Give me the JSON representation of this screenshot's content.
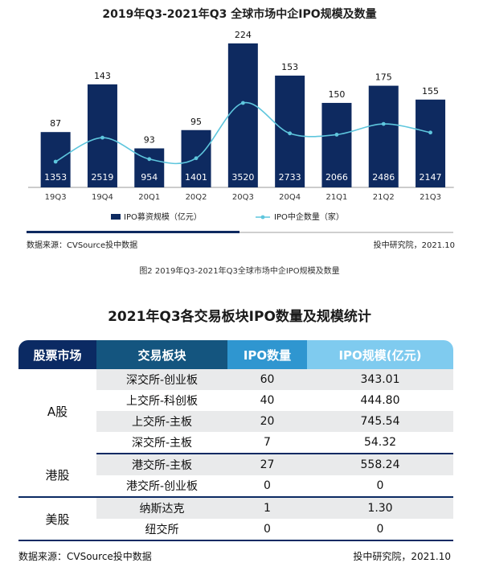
{
  "chart": {
    "title": "2019年Q3-2021年Q3 全球市场中企IPO规模及数量",
    "source": "数据来源：CVSource投中数据",
    "credit": "投中研究院，2021.10",
    "caption": "图2 2019年Q3-2021年Q3全球市场中企IPO规模及数量"
  },
  "colors": {
    "bar": "#0e2a60",
    "line": "#5ec6dd",
    "accent": "#2f96d0",
    "divider": "#0e2a60",
    "divider_light": "#cfcfcf"
  },
  "chart_data": {
    "type": "bar",
    "categories": [
      "19Q3",
      "19Q4",
      "20Q1",
      "20Q2",
      "20Q3",
      "20Q4",
      "21Q1",
      "21Q2",
      "21Q3"
    ],
    "series": [
      {
        "name": "IPO募资规模（亿元）",
        "type": "bar",
        "values": [
          1353,
          2519,
          954,
          1401,
          3520,
          2733,
          2066,
          2486,
          2147
        ]
      },
      {
        "name": "IPO中企数量（家）",
        "type": "line",
        "values": [
          87,
          143,
          93,
          95,
          224,
          153,
          150,
          175,
          155
        ]
      }
    ],
    "title": "2019年Q3-2021年Q3 全球市场中企IPO规模及数量",
    "legend": "bottom"
  },
  "table": {
    "title": "2021年Q3各交易板块IPO数量及规模统计",
    "headers": [
      "股票市场",
      "交易板块",
      "IPO数量",
      "IPO规模(亿元)"
    ],
    "groups": [
      {
        "market": "A股",
        "rows": [
          {
            "board": "深交所-创业板",
            "count": "60",
            "scale": "343.01"
          },
          {
            "board": "上交所-科创板",
            "count": "40",
            "scale": "444.80"
          },
          {
            "board": "上交所-主板",
            "count": "20",
            "scale": "745.54"
          },
          {
            "board": "深交所-主板",
            "count": "7",
            "scale": "54.32"
          }
        ]
      },
      {
        "market": "港股",
        "rows": [
          {
            "board": "港交所-主板",
            "count": "27",
            "scale": "558.24"
          },
          {
            "board": "港交所-创业板",
            "count": "0",
            "scale": "0"
          }
        ]
      },
      {
        "market": "美股",
        "rows": [
          {
            "board": "纳斯达克",
            "count": "1",
            "scale": "1.30"
          },
          {
            "board": "纽交所",
            "count": "0",
            "scale": "0"
          }
        ]
      }
    ],
    "source": "数据来源：CVSource投中数据",
    "credit": "投中研究院，2021.10"
  }
}
